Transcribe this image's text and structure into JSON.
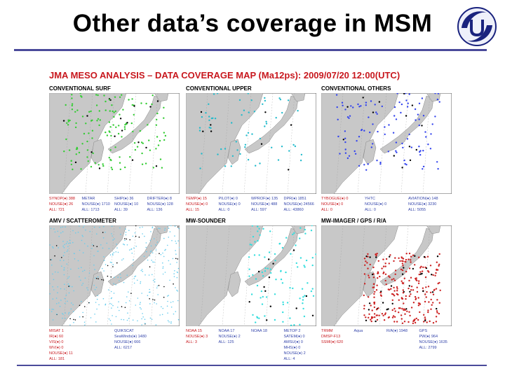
{
  "slide": {
    "title": "Other data’s coverage in MSM"
  },
  "figure": {
    "title": "JMA MESO ANALYSIS – DATA COVERAGE MAP (Ma12ps): 2009/07/20 12:00(UTC)",
    "panels": [
      {
        "label": "CONVENTIONAL SURF",
        "color": "#33cc33",
        "legend": [
          [
            "SYNOP(●) 388",
            "NOUSE(●) 26",
            "ALL: 721"
          ],
          [
            "METAR",
            "NOUSE(●) 1710",
            "ALL: 1713"
          ],
          [
            "SHIP(●) 36",
            "NOUSE(●) 10",
            "ALL: 39"
          ],
          [
            "DRIFTER(●) 8",
            "NOUSE(●) 128",
            "ALL: 136"
          ]
        ]
      },
      {
        "label": "CONVENTIONAL UPPER",
        "color": "#22bbcc",
        "legend": [
          [
            "TEMP(●) 15",
            "NOUSE(●) 0",
            "ALL: 15"
          ],
          [
            "PILOT(●) 0",
            "NOUSE(●) 0",
            "ALL: 0"
          ],
          [
            "WPROF(●) 135",
            "NOUSE(●) 488",
            "ALL: 597"
          ],
          [
            "DPR(●) 1851",
            "NOUSE(●) 24566",
            "ALL: 43860"
          ]
        ]
      },
      {
        "label": "CONVENTIONAL OTHERS",
        "color": "#3344ee",
        "legend": [
          [
            "TYBOGUE(●) 0",
            "NOUSE(●) 0",
            "ALL: 0"
          ],
          [
            "YHTC",
            "NOUSE(●) 0",
            "ALL: 0"
          ],
          [
            "AVIATION(●) 148",
            "NOUSE(●) 3230",
            "ALL: 5055"
          ]
        ]
      },
      {
        "label": "AMV / SCATTEROMETER",
        "color": "#66ccee",
        "legend": [
          [
            "MISAT 1",
            "IR(●) 60",
            "VIS(●) 0",
            "WV(●) 0",
            "NOUSE(●) 11",
            "ALL: 181"
          ],
          [
            "QUIKSCAT",
            "SeaWinds(●) 1480",
            "NOUSE(●) 666",
            "ALL: 6217"
          ]
        ]
      },
      {
        "label": "MW-SOUNDER",
        "color": "#33dddd",
        "legend": [
          [
            "NOAA 15",
            "NOUSE(●) 3",
            "ALL: 3"
          ],
          [
            "NOAA 17",
            "NOUSE(●) 2",
            "ALL: 125"
          ],
          [
            "NOAA 18",
            "",
            ""
          ],
          [
            "METOP 2",
            "SATEM(●) 0",
            "AMSU(●) 0",
            "MHS(●) 0",
            "NOUSE(●) 2",
            "ALL: 4"
          ]
        ]
      },
      {
        "label": "MW-IMAGER / GPS / R/A",
        "color": "#cc2222",
        "legend": [
          [
            "TRMM",
            "DMSP-F13",
            "SSMI(●) 620"
          ],
          [
            "Aqua",
            "",
            ""
          ],
          [
            "R/A(●) 1948",
            "",
            ""
          ],
          [
            "GPS",
            "PW(●) 964",
            "NOUSE(●) 1635",
            "ALL: 2799"
          ]
        ]
      }
    ]
  }
}
